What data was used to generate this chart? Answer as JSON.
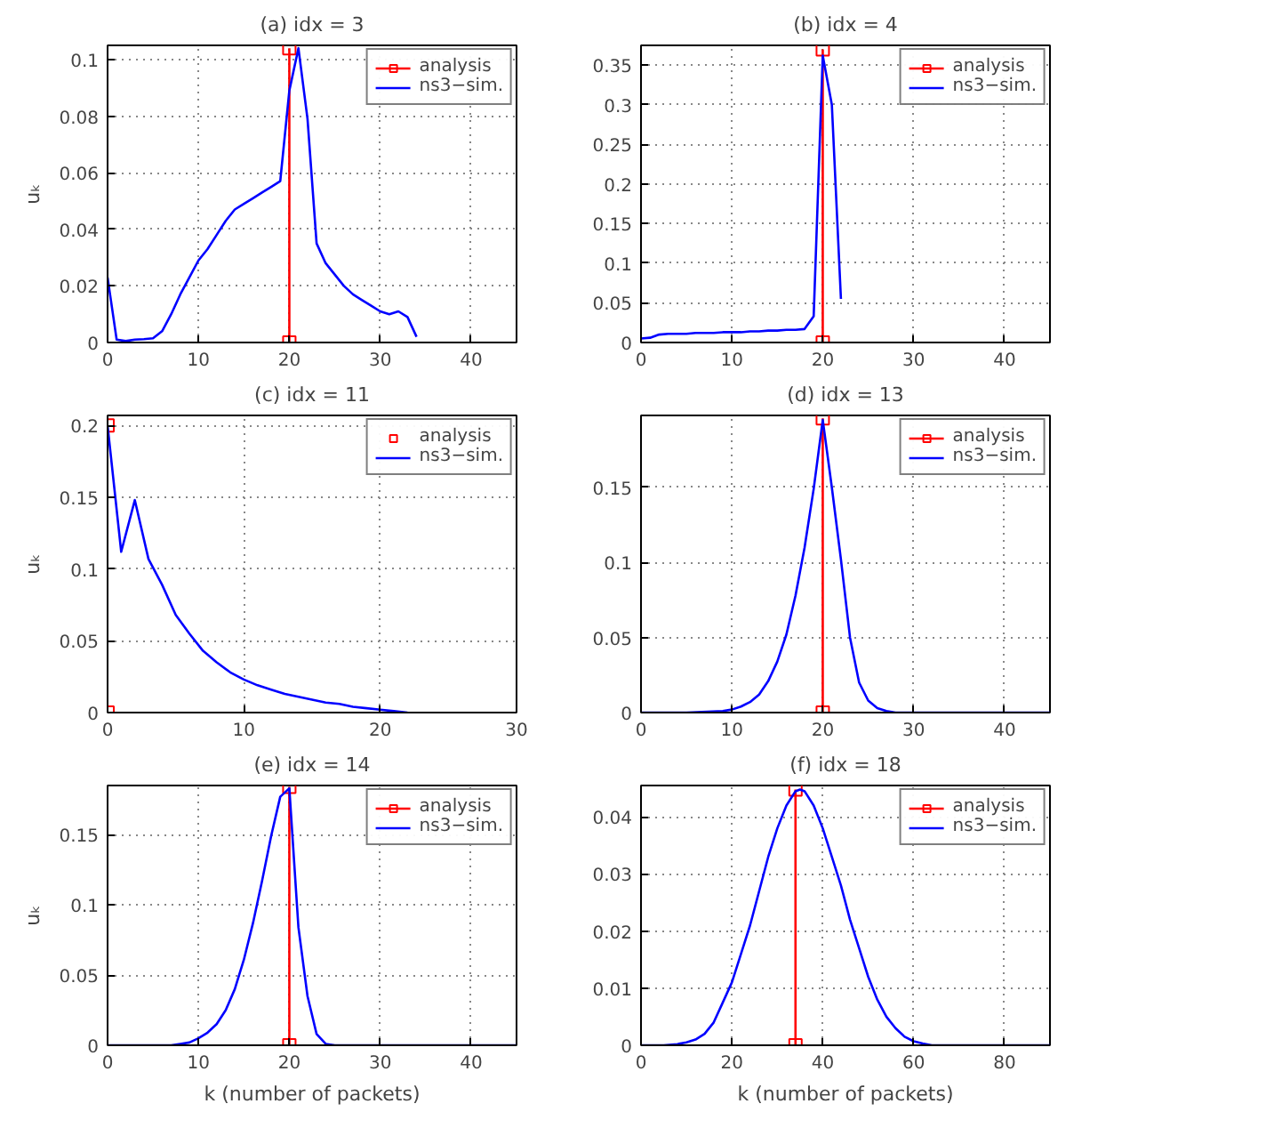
{
  "chart_data": [
    {
      "type": "line",
      "title": "(a) idx = 3",
      "ylabel": "uₖ",
      "xlim": [
        0,
        45
      ],
      "xticks": [
        0,
        10,
        20,
        30,
        40
      ],
      "ylim": [
        0,
        0.105
      ],
      "yticks": [
        0,
        0.02,
        0.04,
        0.06,
        0.08,
        0.1
      ],
      "grid": true,
      "legend": "top right",
      "line_style": "solid",
      "series": [
        {
          "name": "analysis",
          "color": "#ff0000",
          "marker": "square",
          "x": [
            20,
            20
          ],
          "values": [
            0,
            0.104
          ]
        },
        {
          "name": "ns3−sim.",
          "color": "#0000ff",
          "marker": "none",
          "x": [
            0,
            1,
            2,
            3,
            4,
            5,
            6,
            7,
            8,
            9,
            10,
            11,
            12,
            13,
            14,
            15,
            16,
            17,
            18,
            19,
            20,
            21,
            22,
            23,
            24,
            25,
            26,
            27,
            28,
            29,
            30,
            31,
            32,
            33,
            34
          ],
          "values": [
            0.023,
            0.001,
            0.0005,
            0.001,
            0.0012,
            0.0015,
            0.004,
            0.01,
            0.017,
            0.023,
            0.029,
            0.033,
            0.038,
            0.043,
            0.047,
            0.049,
            0.051,
            0.053,
            0.055,
            0.057,
            0.089,
            0.104,
            0.079,
            0.035,
            0.028,
            0.024,
            0.02,
            0.017,
            0.015,
            0.013,
            0.011,
            0.01,
            0.011,
            0.009,
            0.002
          ]
        }
      ]
    },
    {
      "type": "line",
      "title": "(b) idx = 4",
      "xlim": [
        0,
        45
      ],
      "xticks": [
        0,
        10,
        20,
        30,
        40
      ],
      "ylim": [
        0,
        0.375
      ],
      "yticks": [
        0,
        0.05,
        0.1,
        0.15,
        0.2,
        0.25,
        0.3,
        0.35
      ],
      "grid": true,
      "legend": "top right",
      "line_style": "solid",
      "series": [
        {
          "name": "analysis",
          "color": "#ff0000",
          "marker": "square",
          "x": [
            20,
            20
          ],
          "values": [
            0,
            0.37
          ]
        },
        {
          "name": "ns3−sim.",
          "color": "#0000ff",
          "marker": "none",
          "x": [
            0,
            1,
            2,
            3,
            4,
            5,
            6,
            7,
            8,
            9,
            10,
            11,
            12,
            13,
            14,
            15,
            16,
            17,
            18,
            19,
            20,
            21,
            22
          ],
          "values": [
            0.005,
            0.006,
            0.01,
            0.011,
            0.011,
            0.011,
            0.012,
            0.012,
            0.012,
            0.013,
            0.013,
            0.013,
            0.014,
            0.014,
            0.015,
            0.015,
            0.016,
            0.016,
            0.017,
            0.033,
            0.362,
            0.3,
            0.055
          ]
        }
      ]
    },
    {
      "type": "line",
      "title": "(c) idx = 11",
      "ylabel": "uₖ",
      "xlim": [
        0,
        30
      ],
      "xticks": [
        0,
        10,
        20,
        30
      ],
      "ylim": [
        0,
        0.207
      ],
      "yticks": [
        0,
        0.05,
        0.1,
        0.15,
        0.2
      ],
      "grid": true,
      "legend": "top right",
      "line_style": "solid",
      "series": [
        {
          "name": "analysis",
          "type": "scatter",
          "color": "#ff0000",
          "marker": "square",
          "x": [
            0,
            0
          ],
          "values": [
            0,
            0.2
          ]
        },
        {
          "name": "ns3−sim.",
          "color": "#0000ff",
          "marker": "none",
          "x": [
            0,
            1,
            2,
            3,
            4,
            5,
            6,
            7,
            8,
            9,
            10,
            11,
            12,
            13,
            14,
            15,
            16,
            17,
            18,
            19,
            20,
            21,
            22
          ],
          "values": [
            0.2,
            0.112,
            0.148,
            0.107,
            0.089,
            0.068,
            0.055,
            0.043,
            0.035,
            0.028,
            0.023,
            0.019,
            0.016,
            0.013,
            0.011,
            0.009,
            0.007,
            0.006,
            0.004,
            0.003,
            0.002,
            0.001,
            0
          ]
        }
      ]
    },
    {
      "type": "line",
      "title": "(d) idx = 13",
      "xlim": [
        0,
        45
      ],
      "xticks": [
        0,
        10,
        20,
        30,
        40
      ],
      "ylim": [
        0,
        0.198
      ],
      "yticks": [
        0,
        0.05,
        0.1,
        0.15
      ],
      "grid": true,
      "legend": "top right",
      "line_style": "solid",
      "series": [
        {
          "name": "analysis",
          "color": "#ff0000",
          "marker": "square",
          "x": [
            20,
            20
          ],
          "values": [
            0,
            0.196
          ]
        },
        {
          "name": "ns3−sim.",
          "color": "#0000ff",
          "marker": "none",
          "x": [
            0,
            5,
            9,
            10,
            11,
            12,
            13,
            14,
            15,
            16,
            17,
            18,
            19,
            20,
            21,
            22,
            23,
            24,
            25,
            26,
            27,
            28,
            35,
            45
          ],
          "values": [
            0,
            0,
            0.001,
            0.002,
            0.004,
            0.007,
            0.012,
            0.021,
            0.034,
            0.052,
            0.078,
            0.11,
            0.149,
            0.195,
            0.15,
            0.102,
            0.05,
            0.02,
            0.008,
            0.003,
            0.001,
            0,
            0,
            0
          ]
        }
      ]
    },
    {
      "type": "line",
      "title": "(e) idx = 14",
      "ylabel": "uₖ",
      "xlabel": "k (number of packets)",
      "xlim": [
        0,
        45
      ],
      "xticks": [
        0,
        10,
        20,
        30,
        40
      ],
      "ylim": [
        0,
        0.185
      ],
      "yticks": [
        0,
        0.05,
        0.1,
        0.15
      ],
      "grid": true,
      "legend": "top right",
      "line_style": "solid",
      "series": [
        {
          "name": "analysis",
          "color": "#ff0000",
          "marker": "square",
          "x": [
            20,
            20
          ],
          "values": [
            0,
            0.184
          ]
        },
        {
          "name": "ns3−sim.",
          "color": "#0000ff",
          "marker": "none",
          "x": [
            0,
            5,
            7,
            8,
            9,
            10,
            11,
            12,
            13,
            14,
            15,
            16,
            17,
            18,
            19,
            20,
            21,
            22,
            23,
            24,
            25,
            35,
            45
          ],
          "values": [
            0,
            0,
            0,
            0.001,
            0.002,
            0.005,
            0.009,
            0.015,
            0.025,
            0.04,
            0.061,
            0.087,
            0.117,
            0.149,
            0.177,
            0.183,
            0.084,
            0.035,
            0.008,
            0.001,
            0,
            0,
            0
          ]
        }
      ]
    },
    {
      "type": "line",
      "title": "(f) idx = 18",
      "xlabel": "k (number of packets)",
      "xlim": [
        0,
        90
      ],
      "xticks": [
        0,
        20,
        40,
        60,
        80
      ],
      "ylim": [
        0,
        0.0455
      ],
      "yticks": [
        0,
        0.01,
        0.02,
        0.03,
        0.04
      ],
      "grid": true,
      "legend": "top right",
      "line_style": "solid",
      "series": [
        {
          "name": "analysis",
          "color": "#ff0000",
          "marker": "square",
          "x": [
            34,
            34
          ],
          "values": [
            0,
            0.0448
          ]
        },
        {
          "name": "ns3−sim.",
          "color": "#0000ff",
          "marker": "none",
          "x": [
            0,
            5,
            8,
            10,
            12,
            14,
            16,
            18,
            20,
            22,
            24,
            26,
            28,
            30,
            32,
            34,
            35,
            36,
            38,
            40,
            42,
            44,
            46,
            48,
            50,
            52,
            54,
            56,
            58,
            60,
            62,
            64,
            66,
            80,
            90
          ],
          "values": [
            0,
            0,
            0.0002,
            0.0005,
            0.001,
            0.002,
            0.004,
            0.0075,
            0.011,
            0.016,
            0.021,
            0.027,
            0.033,
            0.038,
            0.042,
            0.0445,
            0.0448,
            0.0445,
            0.042,
            0.038,
            0.033,
            0.028,
            0.022,
            0.017,
            0.012,
            0.008,
            0.005,
            0.003,
            0.0015,
            0.0007,
            0.0003,
            0,
            0,
            0,
            0
          ]
        }
      ]
    }
  ]
}
